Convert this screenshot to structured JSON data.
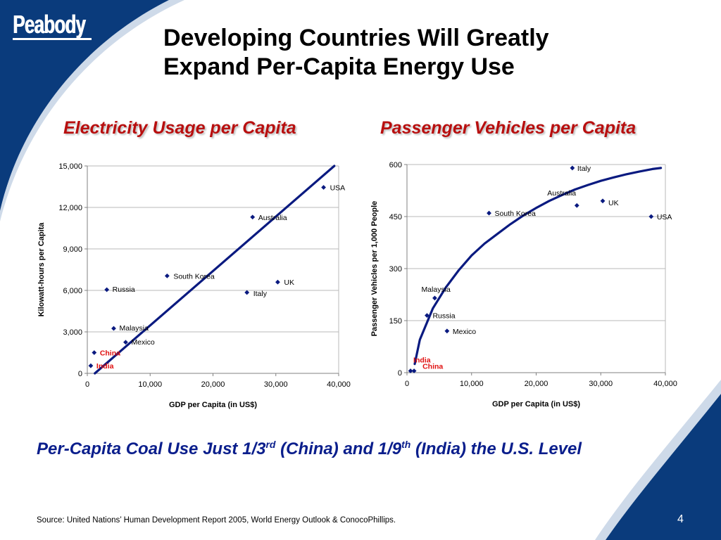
{
  "brand": {
    "logo_text": "Peabody",
    "navy": "#0a3b7c",
    "accent_red": "#b80f0f",
    "series_color": "#0a1a80",
    "label_red": "#e01010"
  },
  "title_line1": "Developing Countries Will Greatly",
  "title_line2": "Expand Per-Capita Energy Use",
  "tagline": {
    "part1": "Per-Capita Coal Use Just 1/3",
    "sup1": "rd",
    "part2": " (China) and 1/9",
    "sup2": "th",
    "part3": " (India) the U.S. Level"
  },
  "source": "Source:  United Nations’ Human Development Report 2005, World Energy Outlook & ConocoPhillips.",
  "page_number": "4",
  "chart_data": [
    {
      "type": "scatter",
      "title": "Electricity Usage per Capita",
      "xlabel": "GDP per Capita (in US$)",
      "ylabel": "Kilowatt-hours per Capita",
      "xlim": [
        0,
        40000
      ],
      "ylim": [
        0,
        15000
      ],
      "xticks": [
        0,
        10000,
        20000,
        30000,
        40000
      ],
      "yticks": [
        0,
        3000,
        6000,
        9000,
        12000,
        15000
      ],
      "grid": true,
      "points": [
        {
          "label": "USA",
          "x": 37600,
          "y": 13450,
          "highlight": false
        },
        {
          "label": "Australia",
          "x": 26300,
          "y": 11300,
          "highlight": false
        },
        {
          "label": "South Korea",
          "x": 12700,
          "y": 7050,
          "highlight": false
        },
        {
          "label": "UK",
          "x": 30300,
          "y": 6600,
          "highlight": false
        },
        {
          "label": "Italy",
          "x": 25400,
          "y": 5850,
          "highlight": false
        },
        {
          "label": "Russia",
          "x": 3100,
          "y": 6050,
          "highlight": false
        },
        {
          "label": "Malaysia",
          "x": 4200,
          "y": 3250,
          "highlight": false
        },
        {
          "label": "Mexico",
          "x": 6100,
          "y": 2250,
          "highlight": false
        },
        {
          "label": "China",
          "x": 1100,
          "y": 1500,
          "highlight": true
        },
        {
          "label": "India",
          "x": 550,
          "y": 550,
          "highlight": true
        }
      ],
      "trendline": {
        "kind": "linear",
        "x": [
          1200,
          39300
        ],
        "y": [
          0,
          15000
        ]
      }
    },
    {
      "type": "scatter",
      "title": "Passenger Vehicles per Capita",
      "xlabel": "GDP per Capita (in US$)",
      "ylabel": "Passenger Vehicles per 1,000 People",
      "xlim": [
        0,
        40000
      ],
      "ylim": [
        0,
        600
      ],
      "xticks": [
        0,
        10000,
        20000,
        30000,
        40000
      ],
      "yticks": [
        0,
        150,
        300,
        450,
        600
      ],
      "grid": true,
      "points": [
        {
          "label": "Italy",
          "x": 25600,
          "y": 590,
          "highlight": false
        },
        {
          "label": "Australia",
          "x": 26300,
          "y": 482,
          "highlight": false
        },
        {
          "label": "UK",
          "x": 30300,
          "y": 495,
          "highlight": false
        },
        {
          "label": "South Korea",
          "x": 12700,
          "y": 460,
          "highlight": false
        },
        {
          "label": "USA",
          "x": 37800,
          "y": 450,
          "highlight": false
        },
        {
          "label": "Malaysia",
          "x": 4300,
          "y": 215,
          "highlight": false
        },
        {
          "label": "Russia",
          "x": 3100,
          "y": 165,
          "highlight": false
        },
        {
          "label": "Mexico",
          "x": 6200,
          "y": 120,
          "highlight": false
        },
        {
          "label": "India",
          "x": 550,
          "y": 5,
          "highlight": true
        },
        {
          "label": "China",
          "x": 1100,
          "y": 5,
          "highlight": true
        }
      ],
      "trendline": {
        "kind": "curve",
        "x": [
          1200,
          2000,
          4000,
          6000,
          8000,
          10000,
          12000,
          14000,
          16000,
          18000,
          20000,
          22000,
          24000,
          26000,
          28000,
          30000,
          32000,
          34000,
          36000,
          38000,
          39300
        ],
        "y": [
          25,
          95,
          185,
          245,
          295,
          338,
          372,
          400,
          428,
          453,
          475,
          495,
          512,
          528,
          541,
          553,
          563,
          572,
          580,
          587,
          590
        ]
      }
    }
  ]
}
